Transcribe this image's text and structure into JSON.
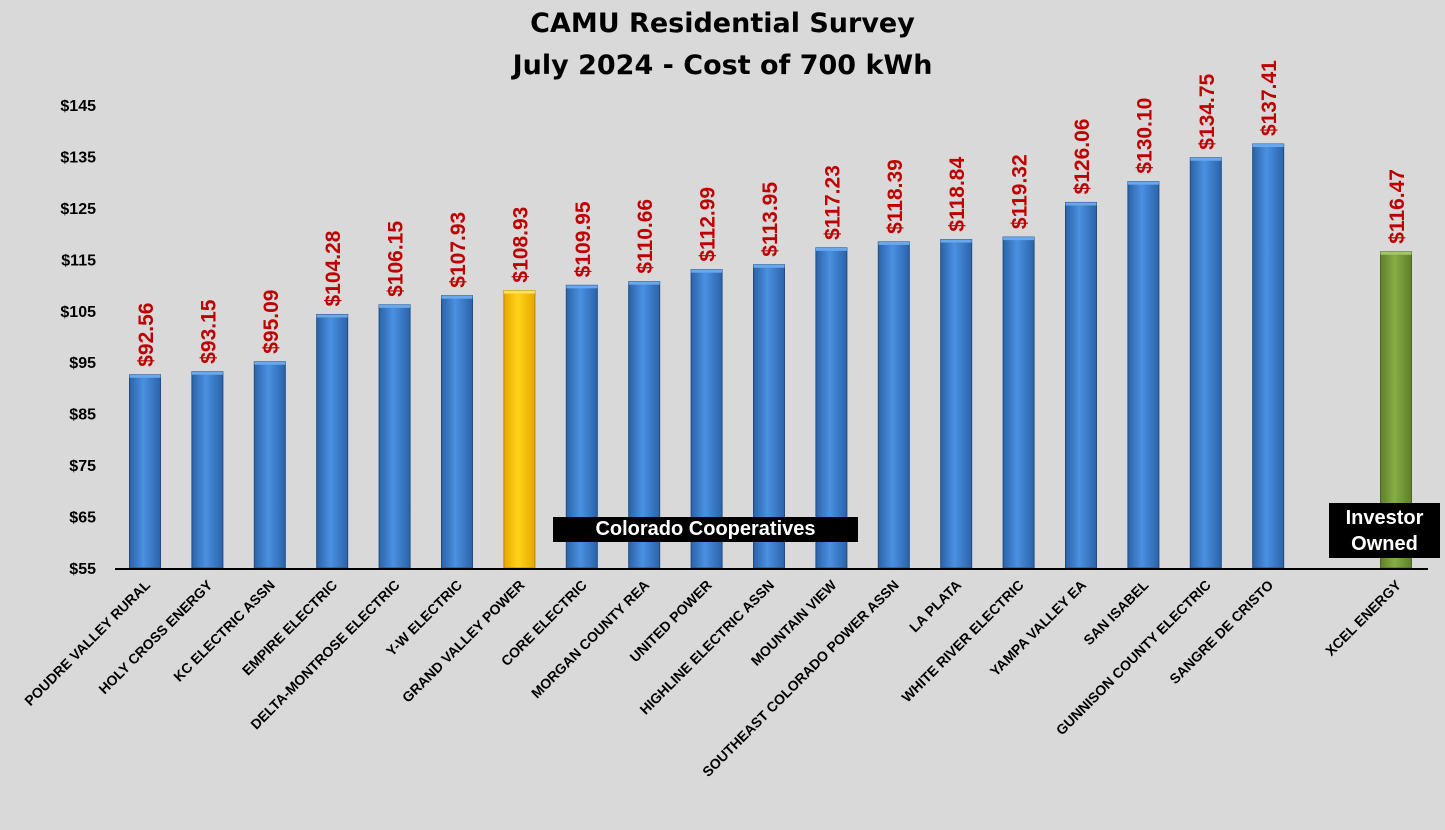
{
  "chart_data": {
    "type": "bar",
    "title": "CAMU Residential Survey",
    "subtitle": "July 2024 - Cost of 700 kWh",
    "xlabel": "",
    "ylabel": "",
    "ylim": [
      55,
      145
    ],
    "y_ticks": [
      "$145",
      "$135",
      "$125",
      "$115",
      "$105",
      "$95",
      "$85",
      "$75",
      "$65",
      "$55"
    ],
    "y_tick_values": [
      145,
      135,
      125,
      115,
      105,
      95,
      85,
      75,
      65,
      55
    ],
    "categories": [
      "POUDRE VALLEY RURAL",
      "HOLY CROSS ENERGY",
      "KC ELECTRIC ASSN",
      "EMPIRE ELECTRIC",
      "DELTA-MONTROSE ELECTRIC",
      "Y-W ELECTRIC",
      "GRAND VALLEY POWER",
      "CORE ELECTRIC",
      "MORGAN COUNTY REA",
      "UNITED POWER",
      "HIGHLINE ELECTRIC ASSN",
      "MOUNTAIN VIEW",
      "SOUTHEAST COLORADO POWER ASSN",
      "LA PLATA",
      "WHITE RIVER ELECTRIC",
      "YAMPA VALLEY EA",
      "SAN ISABEL",
      "GUNNISON COUNTY ELECTRIC",
      "SANGRE DE CRISTO",
      "XCEL ENERGY"
    ],
    "values": [
      92.56,
      93.15,
      95.09,
      104.28,
      106.15,
      107.93,
      108.93,
      109.95,
      110.66,
      112.99,
      113.95,
      117.23,
      118.39,
      118.84,
      119.32,
      126.06,
      130.1,
      134.75,
      137.41,
      116.47
    ],
    "value_labels": [
      "$92.56",
      "$93.15",
      "$95.09",
      "$104.28",
      "$106.15",
      "$107.93",
      "$108.93",
      "$109.95",
      "$110.66",
      "$112.99",
      "$113.95",
      "$117.23",
      "$118.39",
      "$118.84",
      "$119.32",
      "$126.06",
      "$130.10",
      "$134.75",
      "$137.41",
      "$116.47"
    ],
    "bar_groups": [
      "coop",
      "coop",
      "coop",
      "coop",
      "coop",
      "coop",
      "highlight",
      "coop",
      "coop",
      "coop",
      "coop",
      "coop",
      "coop",
      "coop",
      "coop",
      "coop",
      "coop",
      "coop",
      "coop",
      "investor"
    ],
    "group_labels": {
      "coop": "Colorado Cooperatives",
      "investor_line1": "Investor",
      "investor_line2": "Owned"
    },
    "colors": {
      "coop": "#3a7fd0",
      "highlight": "#ffc800",
      "investor": "#7a9e3c",
      "value_label": "#c00000"
    }
  }
}
